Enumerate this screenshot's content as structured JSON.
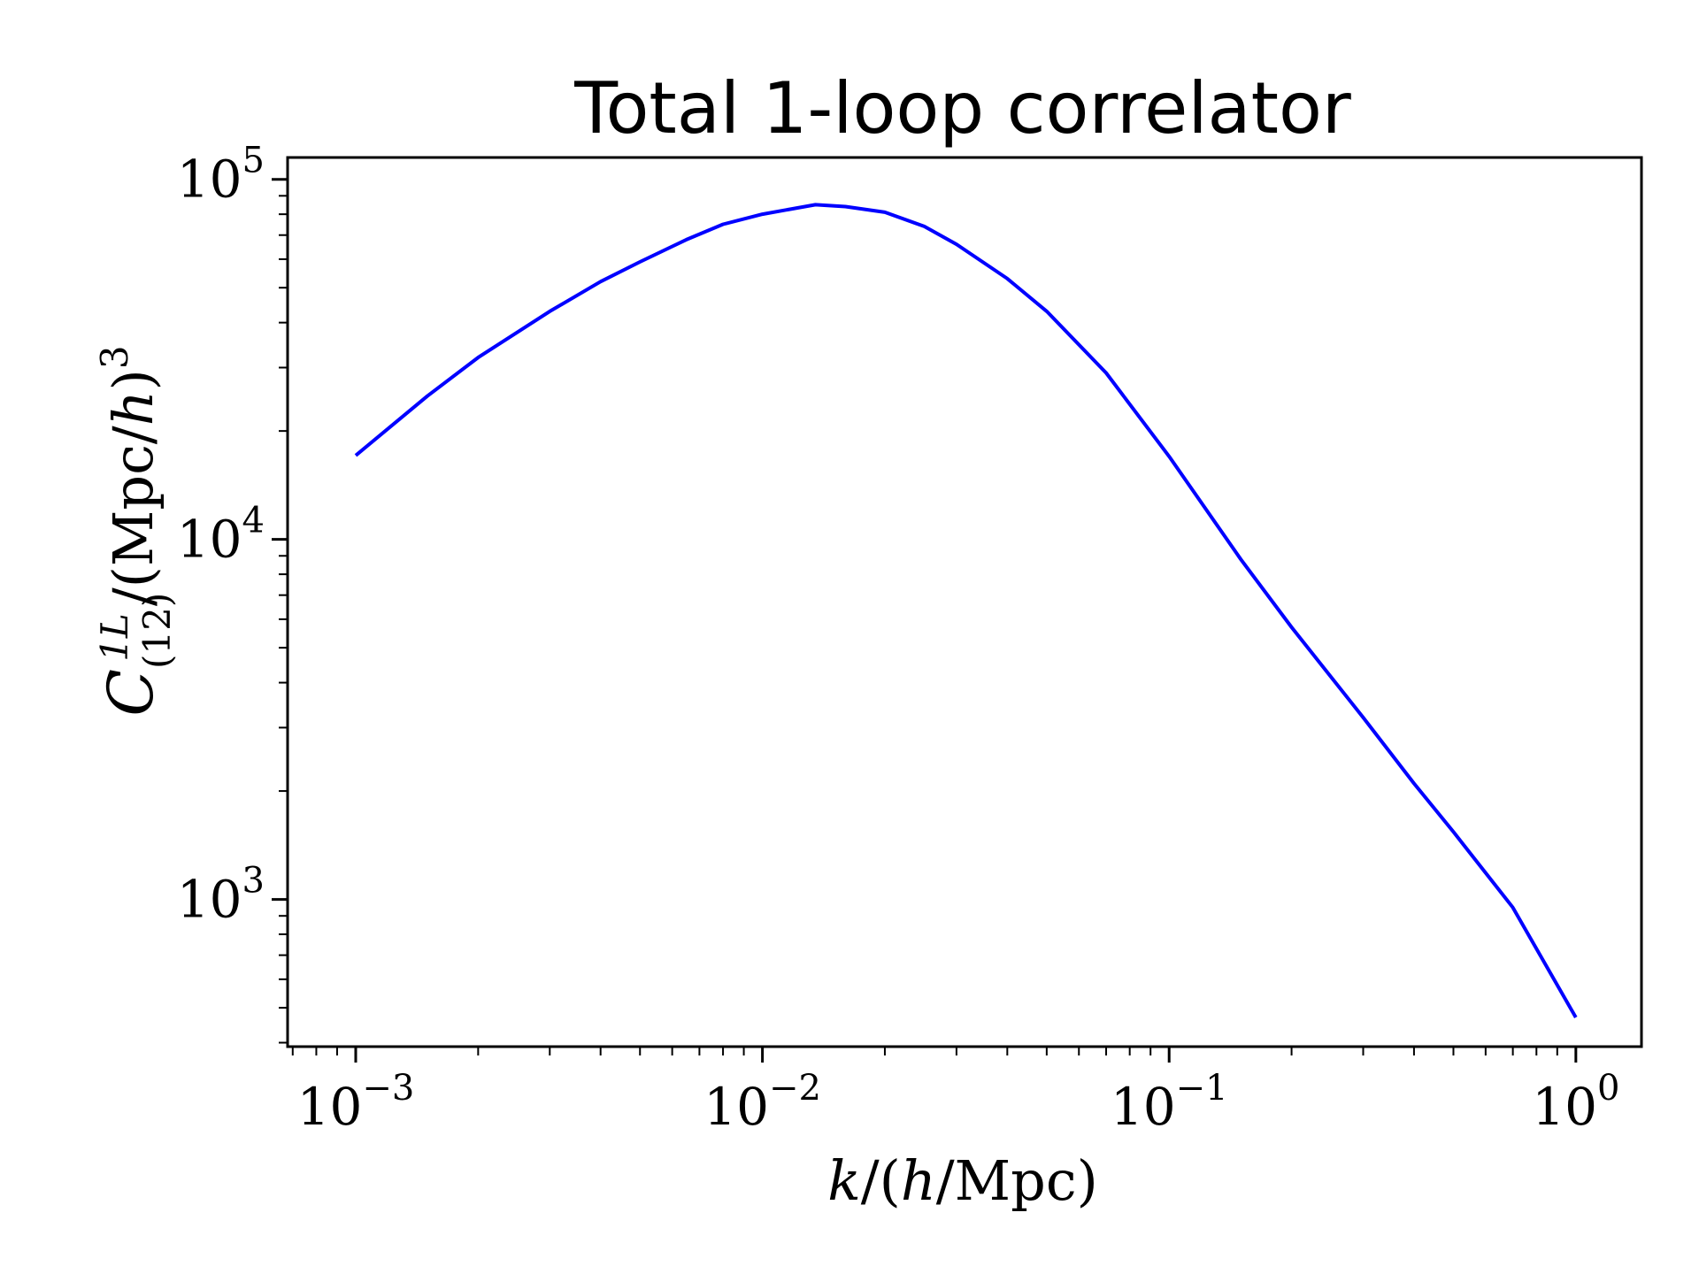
{
  "chart_data": {
    "type": "line",
    "title": "Total 1-loop correlator",
    "xlabel": "k/(h/Mpc)",
    "ylabel": "C^{1L}_{(12)}/(Mpc/h)^3",
    "xscale": "log",
    "yscale": "log",
    "xlim": [
      0.00068,
      1.45
    ],
    "ylim": [
      390,
      115000
    ],
    "grid": false,
    "x_ticks": [
      {
        "value": 0.001,
        "base": "10",
        "exp": "−3"
      },
      {
        "value": 0.01,
        "base": "10",
        "exp": "−2"
      },
      {
        "value": 0.1,
        "base": "10",
        "exp": "−1"
      },
      {
        "value": 1,
        "base": "10",
        "exp": "0"
      }
    ],
    "y_ticks": [
      {
        "value": 1000,
        "base": "10",
        "exp": "3"
      },
      {
        "value": 10000,
        "base": "10",
        "exp": "4"
      },
      {
        "value": 100000,
        "base": "10",
        "exp": "5"
      }
    ],
    "series": [
      {
        "color": "#0000ff",
        "x": [
          0.001,
          0.0015,
          0.002,
          0.003,
          0.004,
          0.005,
          0.0065,
          0.008,
          0.01,
          0.0135,
          0.016,
          0.02,
          0.025,
          0.03,
          0.04,
          0.05,
          0.07,
          0.1,
          0.15,
          0.2,
          0.3,
          0.4,
          0.5,
          0.7,
          1.0
        ],
        "y": [
          17100,
          25000,
          32000,
          43000,
          52000,
          59000,
          68000,
          75000,
          80000,
          85000,
          84000,
          81000,
          74000,
          66000,
          53000,
          43000,
          29000,
          17000,
          8800,
          5700,
          3200,
          2100,
          1540,
          950,
          470
        ]
      }
    ]
  }
}
